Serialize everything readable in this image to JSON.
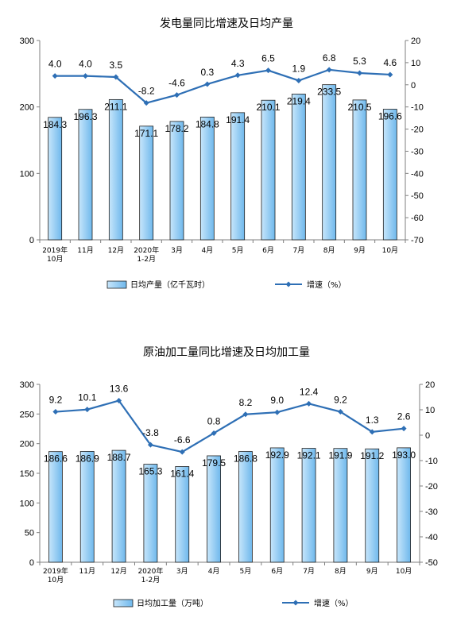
{
  "chart_data": [
    {
      "type": "bar",
      "title": "发电量同比增速及日均产量",
      "categories": [
        [
          "2019年",
          "10月"
        ],
        [
          "11月"
        ],
        [
          "12月"
        ],
        [
          "2020年",
          "1-2月"
        ],
        [
          "3月"
        ],
        [
          "4月"
        ],
        [
          "5月"
        ],
        [
          "6月"
        ],
        [
          "7月"
        ],
        [
          "8月"
        ],
        [
          "9月"
        ],
        [
          "10月"
        ]
      ],
      "series": [
        {
          "name": "日均产量（亿千瓦时）",
          "type": "bar",
          "axis": "left",
          "values": [
            184.3,
            196.3,
            211.1,
            171.1,
            178.2,
            184.8,
            191.4,
            210.1,
            219.4,
            233.5,
            210.5,
            196.6
          ]
        },
        {
          "name": "增速（%）",
          "type": "line",
          "axis": "right",
          "values": [
            4.0,
            4.0,
            3.5,
            -8.2,
            -4.6,
            0.3,
            4.3,
            6.5,
            1.9,
            6.8,
            5.3,
            4.6
          ]
        }
      ],
      "ylim_left": [
        0,
        300
      ],
      "yticks_left": [
        0,
        100,
        200,
        300
      ],
      "ylim_right": [
        -70,
        20
      ],
      "yticks_right": [
        20,
        10,
        0,
        -10,
        -20,
        -30,
        -40,
        -50,
        -60,
        -70
      ],
      "legend_position": "bottom"
    },
    {
      "type": "bar",
      "title": "原油加工量同比增速及日均加工量",
      "categories": [
        [
          "2019年",
          "10月"
        ],
        [
          "11月"
        ],
        [
          "12月"
        ],
        [
          "2020年",
          "1-2月"
        ],
        [
          "3月"
        ],
        [
          "4月"
        ],
        [
          "5月"
        ],
        [
          "6月"
        ],
        [
          "7月"
        ],
        [
          "8月"
        ],
        [
          "9月"
        ],
        [
          "10月"
        ]
      ],
      "series": [
        {
          "name": "日均加工量（万吨）",
          "type": "bar",
          "axis": "left",
          "values": [
            186.6,
            186.9,
            188.7,
            165.3,
            161.4,
            179.5,
            186.8,
            192.9,
            192.1,
            191.9,
            191.2,
            193.0
          ]
        },
        {
          "name": "增速（%）",
          "type": "line",
          "axis": "right",
          "values": [
            9.2,
            10.1,
            13.6,
            -3.8,
            -6.6,
            0.8,
            8.2,
            9.0,
            12.4,
            9.2,
            1.3,
            2.6
          ]
        }
      ],
      "ylim_left": [
        0,
        300
      ],
      "yticks_left": [
        0,
        50,
        100,
        150,
        200,
        250,
        300
      ],
      "ylim_right": [
        -50,
        20
      ],
      "yticks_right": [
        20,
        10,
        0,
        -10,
        -20,
        -30,
        -40,
        -50
      ],
      "legend_position": "bottom"
    }
  ],
  "colors": {
    "bar_fill_top": "#c7e6fb",
    "bar_fill_bottom": "#6fb8ec",
    "bar_stroke": "#1f1f1f",
    "line": "#2e6fb5",
    "axis": "#7f7f7f"
  }
}
